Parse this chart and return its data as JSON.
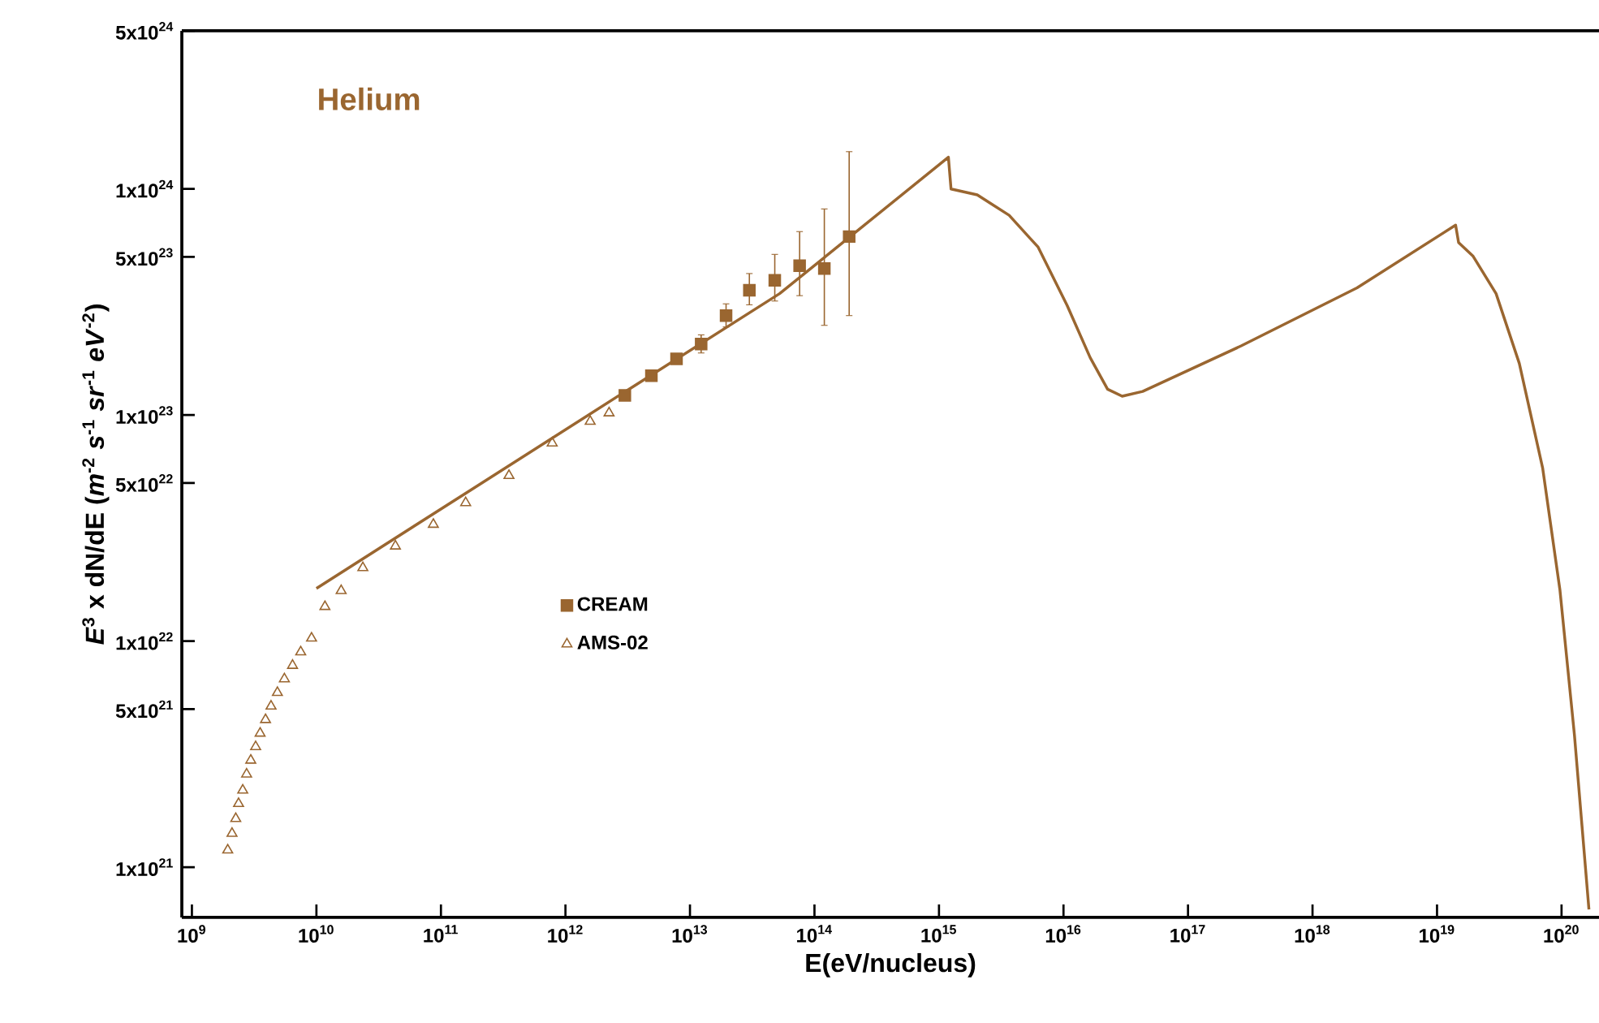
{
  "chart_data": {
    "type": "scatter",
    "title": "Helium",
    "xlabel": "E(eV/nucleus)",
    "ylabel": "*E*$^{3}$ x dN/dE (*m*$^{-2}$ *s*$^{-1}$ *sr*$^{-1}$ *eV*$^{-2}$)",
    "log": "xy",
    "xlim": [
      830000000.0,
      2e+20
    ],
    "ylim": [
      6e+20,
      5e+24
    ],
    "xticks": [
      {
        "value": 1000000000.0,
        "label": "10$^{9}$"
      },
      {
        "value": 10000000000.0,
        "label": "10$^{10}$"
      },
      {
        "value": 100000000000.0,
        "label": "10$^{11}$"
      },
      {
        "value": 1000000000000.0,
        "label": "10$^{12}$"
      },
      {
        "value": 10000000000000.0,
        "label": "10$^{13}$"
      },
      {
        "value": 100000000000000.0,
        "label": "10$^{14}$"
      },
      {
        "value": 1000000000000000.0,
        "label": "10$^{15}$"
      },
      {
        "value": 1e+16,
        "label": "10$^{16}$"
      },
      {
        "value": 1e+17,
        "label": "10$^{17}$"
      },
      {
        "value": 1e+18,
        "label": "10$^{18}$"
      },
      {
        "value": 1e+19,
        "label": "10$^{19}$"
      },
      {
        "value": 1e+20,
        "label": "10$^{20}$"
      }
    ],
    "yticks": [
      {
        "value": 1e+21,
        "label": "1x10$^{21}$"
      },
      {
        "value": 5e+21,
        "label": "5x10$^{21}$"
      },
      {
        "value": 1e+22,
        "label": "1x10$^{22}$"
      },
      {
        "value": 5e+22,
        "label": "5x10$^{22}$"
      },
      {
        "value": 1e+23,
        "label": "1x10$^{23}$"
      },
      {
        "value": 5e+23,
        "label": "5x10$^{23}$"
      },
      {
        "value": 1e+24,
        "label": "1x10$^{24}$"
      },
      {
        "value": 5e+24,
        "label": "5x10$^{24}$"
      }
    ],
    "legend": "center",
    "series": [
      {
        "type": "line",
        "color": "#9a6630",
        "marker": "none",
        "line_style": "solid",
        "x": [
          10000000000.0,
          175000000000.0,
          3030000000000.0,
          52500000000000.0,
          1190000000000000.0,
          1250000000000000.0,
          2030000000000000.0,
          3660000000000000.0,
          6260000000000000.0,
          1.07e+16,
          1.64e+16,
          2.26e+16,
          2.96e+16,
          4.32e+16,
          2.67e+17,
          2.28e+18,
          1.41e+19,
          1.49e+19,
          1.94e+19,
          2.98e+19,
          4.58e+19,
          7.05e+19,
          9.71e+19,
          1.27e+20,
          1.66e+20
        ],
        "values": [
          1.71e+22,
          4.67e+22,
          1.27e+23,
          3.44e+23,
          1.38e+24,
          9.98e+23,
          9.4e+23,
          7.64e+23,
          5.52e+23,
          3.05e+23,
          1.79e+23,
          1.3e+23,
          1.21e+23,
          1.27e+23,
          2.02e+23,
          3.65e+23,
          6.91e+23,
          5.79e+23,
          5.05e+23,
          3.44e+23,
          1.69e+23,
          5.83e+22,
          1.68e+22,
          3.83e+21,
          6.5e+20
        ]
      },
      {
        "name": "CREAM",
        "color": "#9a6630",
        "marker": "square",
        "x": [
          3000000000000.0,
          4900000000000.0,
          7800000000000.0,
          12300000000000.0,
          19500000000000.0,
          30000000000000.0,
          48000000000000.0,
          76000000000000.0,
          120000000000000.0,
          190000000000000.0
        ],
        "values": [
          1.22e+23,
          1.49e+23,
          1.77e+23,
          2.06e+23,
          2.75e+23,
          3.56e+23,
          3.94e+23,
          4.57e+23,
          4.44e+23,
          6.15e+23
        ],
        "errors": [
          null,
          null,
          null,
          [
            1.88e+23,
            2.26e+23
          ],
          [
            2.45e+23,
            3.1e+23
          ],
          [
            3.07e+23,
            4.22e+23
          ],
          [
            3.19e+23,
            5.13e+23
          ],
          [
            3.37e+23,
            6.47e+23
          ],
          [
            2.49e+23,
            8.15e+23
          ],
          [
            2.75e+23,
            1.46e+24
          ]
        ]
      },
      {
        "name": "AMS-02",
        "color": "#9a6630",
        "marker": "triangle",
        "x": [
          1940000000.0,
          2100000000.0,
          2250000000.0,
          2370000000.0,
          2560000000.0,
          2750000000.0,
          2970000000.0,
          3250000000.0,
          3530000000.0,
          3900000000.0,
          4320000000.0,
          4860000000.0,
          5530000000.0,
          6430000000.0,
          7480000000.0,
          9140000000.0,
          11700000000.0,
          15800000000.0,
          23600000000.0,
          43100000000.0,
          86900000000.0,
          158000000000.0,
          352000000000.0,
          783000000000.0,
          1580000000000.0,
          2240000000000.0
        ],
        "values": [
          1.19e+21,
          1.41e+21,
          1.64e+21,
          1.91e+21,
          2.19e+21,
          2.58e+21,
          2.97e+21,
          3.41e+21,
          3.91e+21,
          4.49e+21,
          5.15e+21,
          5.92e+21,
          6.8e+21,
          7.8e+21,
          8.95e+21,
          1.03e+22,
          1.42e+22,
          1.67e+22,
          2.11e+22,
          2.63e+22,
          3.28e+22,
          4.09e+22,
          5.39e+22,
          7.51e+22,
          9.36e+22,
          1.02e+23
        ]
      }
    ]
  }
}
